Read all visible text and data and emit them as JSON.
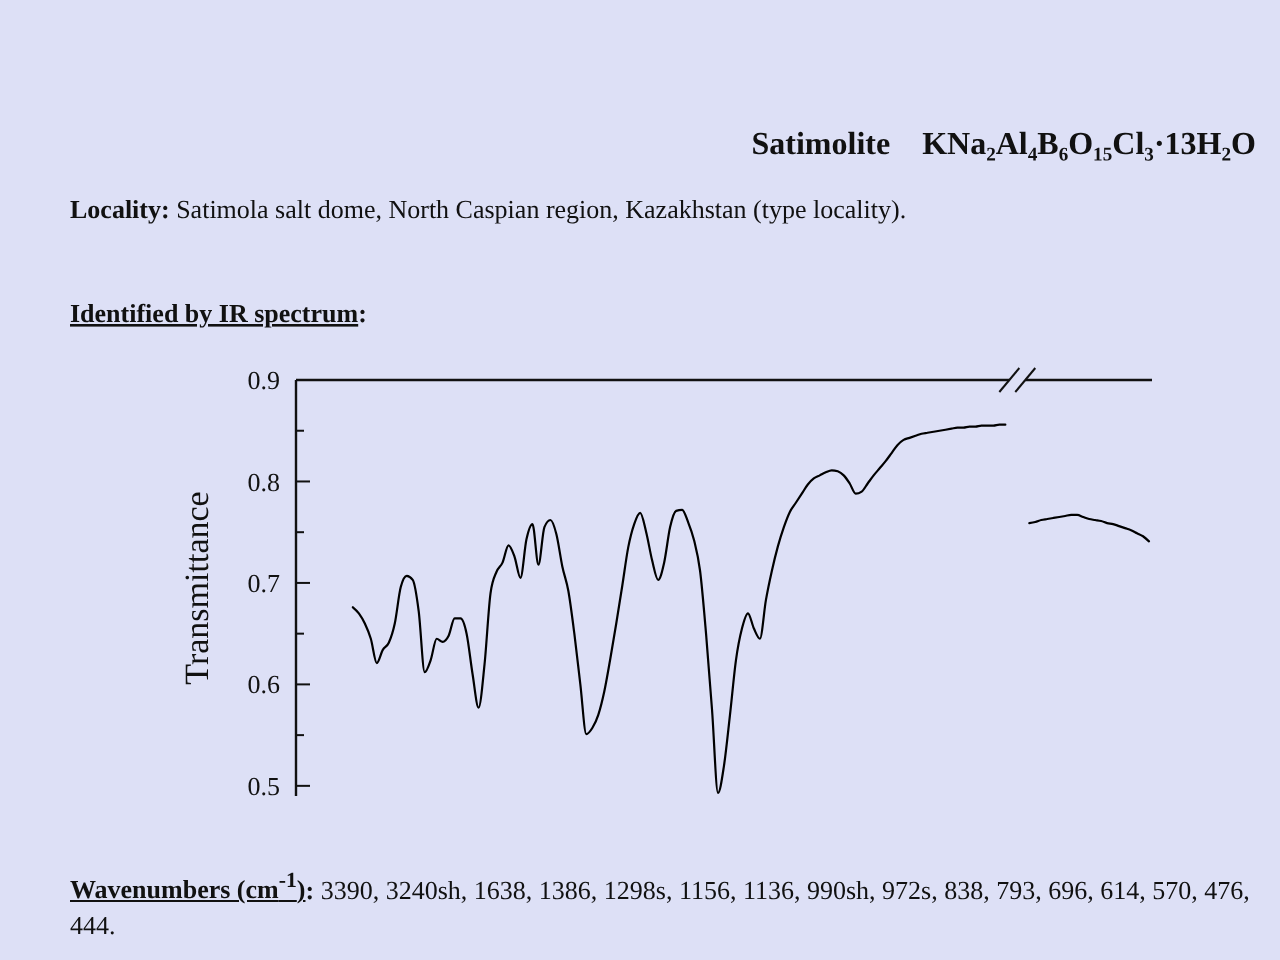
{
  "chart_data": {
    "type": "line",
    "title": "Satimolite    KNa₂Al₄B₆O₁₅Cl₃·13H₂O",
    "subtitle": "Locality: Satimola salt dome, North Caspian region, Kazakhstan (type locality).",
    "ylabel": "Transmittance",
    "annotations": [
      "Identified by IR spectrum:",
      "Wavenumbers (cm$^{-1}$): 3390, 3240sh, 1638, 1386, 1298s, 1156, 1136, 990sh, 972s, 838, 793, 696, 614, 570, 476, 444."
    ],
    "categories": [
      null,
      null,
      null,
      null,
      null,
      null,
      null,
      null,
      null,
      null,
      null,
      null,
      null,
      null,
      null,
      null,
      null,
      null,
      null,
      null,
      null,
      null,
      null,
      null,
      null,
      null,
      null,
      null,
      null,
      null,
      null,
      null,
      null,
      null,
      null,
      null,
      null,
      null,
      null,
      null,
      null,
      null,
      null,
      null,
      null,
      null,
      null,
      null,
      null,
      null,
      null,
      null,
      null,
      null,
      null,
      null,
      null,
      null,
      null,
      null,
      null,
      null,
      null,
      null,
      null,
      null,
      null,
      null,
      null,
      null,
      null,
      null,
      null,
      null,
      null,
      null,
      null,
      null,
      null,
      null,
      null,
      null,
      null,
      null,
      null,
      null,
      null,
      null,
      null,
      null,
      null,
      null,
      null,
      null,
      null,
      null,
      null,
      null,
      null,
      null,
      null,
      null,
      null,
      null,
      null,
      null,
      null,
      null,
      null,
      null,
      null,
      null,
      null,
      null,
      null,
      null,
      null,
      null,
      null,
      null,
      null,
      null,
      null,
      null,
      null,
      null,
      null,
      null,
      null,
      null,
      null,
      null,
      null,
      null,
      null,
      null,
      null,
      null,
      null,
      null,
      null,
      null,
      null
    ],
    "series": [
      {
        "color": "#000000",
        "values": [
          null,
          null,
          null,
          null,
          null,
          null,
          null,
          null,
          null,
          0.676,
          0.67,
          0.66,
          0.645,
          0.621,
          0.634,
          0.641,
          0.66,
          0.696,
          0.707,
          0.703,
          0.672,
          0.612,
          0.624,
          0.645,
          0.642,
          0.648,
          0.665,
          0.665,
          0.65,
          0.61,
          0.577,
          0.62,
          0.69,
          0.711,
          0.72,
          0.737,
          0.726,
          0.705,
          0.743,
          0.758,
          0.718,
          0.755,
          0.762,
          0.748,
          0.716,
          0.692,
          0.65,
          0.6,
          0.551,
          0.557,
          0.57,
          0.593,
          0.625,
          0.66,
          0.697,
          0.735,
          0.758,
          0.769,
          0.75,
          0.722,
          0.703,
          0.72,
          0.755,
          0.771,
          0.772,
          0.76,
          0.742,
          0.712,
          0.65,
          0.575,
          0.493,
          0.52,
          0.57,
          0.624,
          0.655,
          0.67,
          0.655,
          0.645,
          0.683,
          0.712,
          0.736,
          0.755,
          0.77,
          0.779,
          0.788,
          0.797,
          0.803,
          0.806,
          0.809,
          0.811,
          0.81,
          0.806,
          0.798,
          0.788,
          0.79,
          0.798,
          0.806,
          0.813,
          0.82,
          0.828,
          0.836,
          0.841,
          0.843,
          0.845,
          0.847,
          0.848,
          0.849,
          0.85,
          0.851,
          0.852,
          0.853,
          0.853,
          0.854,
          0.854,
          0.855,
          0.855,
          0.855,
          0.856,
          0.856,
          null,
          null,
          null,
          null,
          null,
          null,
          null,
          null,
          null,
          null,
          null,
          null,
          null,
          null,
          null,
          null,
          null,
          null,
          null,
          null,
          null,
          null,
          null,
          null
        ]
      },
      {
        "color": "#000000",
        "values": [
          null,
          null,
          null,
          null,
          null,
          null,
          null,
          null,
          null,
          null,
          null,
          null,
          null,
          null,
          null,
          null,
          null,
          null,
          null,
          null,
          null,
          null,
          null,
          null,
          null,
          null,
          null,
          null,
          null,
          null,
          null,
          null,
          null,
          null,
          null,
          null,
          null,
          null,
          null,
          null,
          null,
          null,
          null,
          null,
          null,
          null,
          null,
          null,
          null,
          null,
          null,
          null,
          null,
          null,
          null,
          null,
          null,
          null,
          null,
          null,
          null,
          null,
          null,
          null,
          null,
          null,
          null,
          null,
          null,
          null,
          null,
          null,
          null,
          null,
          null,
          null,
          null,
          null,
          null,
          null,
          null,
          null,
          null,
          null,
          null,
          null,
          null,
          null,
          null,
          null,
          null,
          null,
          null,
          null,
          null,
          null,
          null,
          null,
          null,
          null,
          null,
          null,
          null,
          null,
          null,
          null,
          null,
          null,
          null,
          null,
          null,
          null,
          null,
          null,
          null,
          null,
          null,
          null,
          null,
          null,
          null,
          null,
          0.759,
          0.76,
          0.762,
          0.763,
          0.764,
          0.765,
          0.766,
          0.767,
          0.767,
          0.765,
          0.763,
          0.762,
          0.761,
          0.759,
          0.758,
          0.756,
          0.754,
          0.752,
          0.749,
          0.746,
          0.741
        ]
      }
    ],
    "ylim": [
      0.49,
      0.9
    ],
    "yticks": [
      0.5,
      {
        "value": 0.55,
        "label": null
      },
      0.6,
      {
        "value": 0.65,
        "label": null
      },
      0.7,
      {
        "value": 0.75,
        "label": null
      },
      0.8,
      {
        "value": 0.85,
        "label": null
      },
      0.9
    ],
    "tick_labels": "y",
    "marker": "none",
    "line_style": "solid"
  }
}
